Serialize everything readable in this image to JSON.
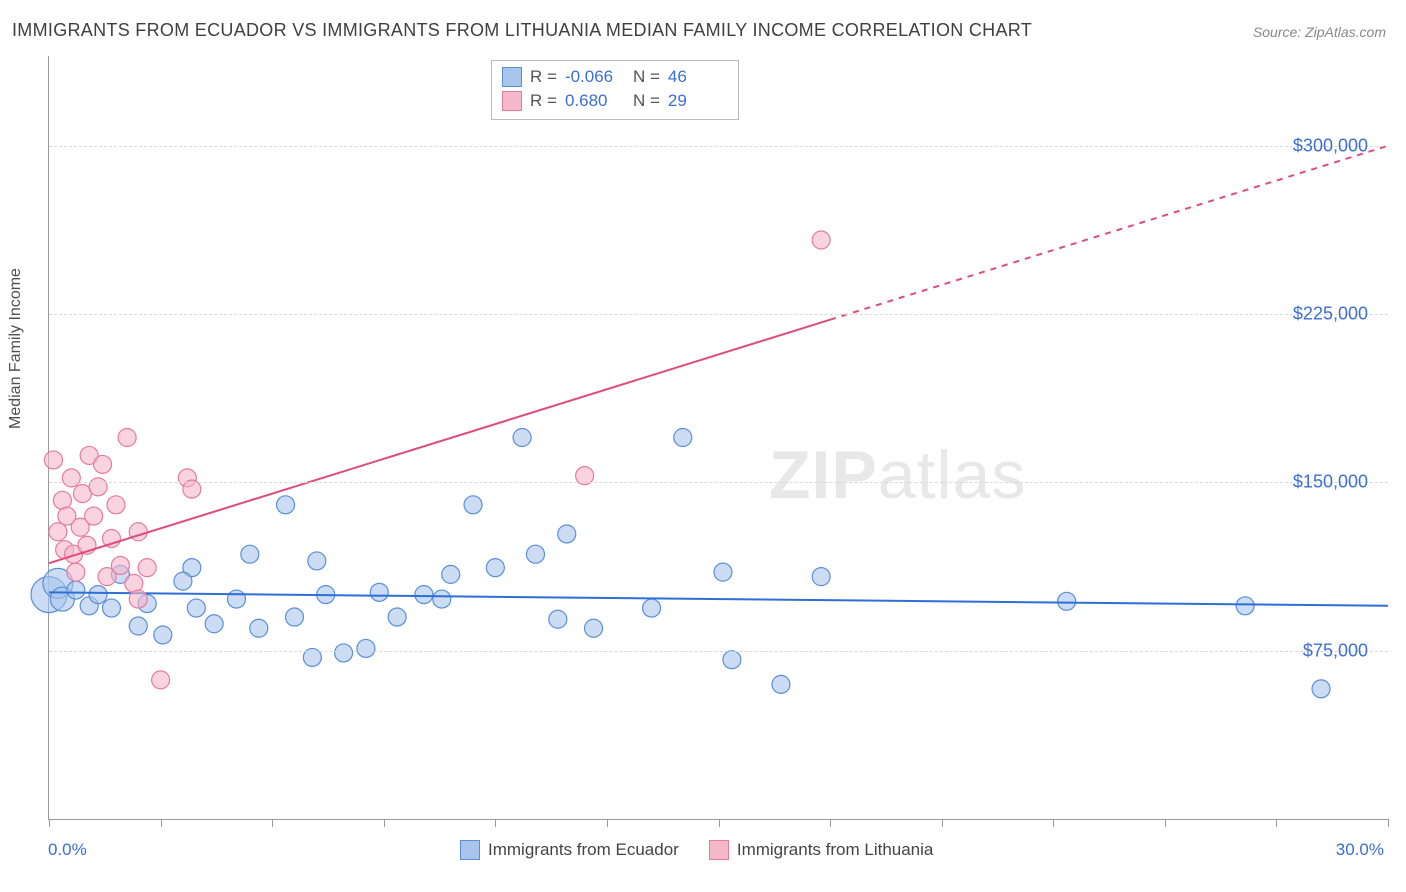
{
  "title": "IMMIGRANTS FROM ECUADOR VS IMMIGRANTS FROM LITHUANIA MEDIAN FAMILY INCOME CORRELATION CHART",
  "source": "Source: ZipAtlas.com",
  "y_axis_label": "Median Family Income",
  "watermark": {
    "bold": "ZIP",
    "light": "atlas"
  },
  "chart": {
    "type": "scatter",
    "xlim": [
      0.0,
      30.0
    ],
    "ylim": [
      0,
      340000
    ],
    "x_left_label": "0.0%",
    "x_right_label": "30.0%",
    "x_tick_step": 2.5,
    "y_ticks": [
      75000,
      150000,
      225000,
      300000
    ],
    "y_tick_labels": [
      "$75,000",
      "$150,000",
      "$225,000",
      "$300,000"
    ],
    "grid_color": "#d8d8d8",
    "background_color": "#ffffff",
    "axis_color": "#999999",
    "tick_label_color": "#3b6fd6",
    "series": [
      {
        "name": "Immigrants from Ecuador",
        "color_fill": "#a8c5ec",
        "color_stroke": "#5a8fd8",
        "fill_opacity": 0.6,
        "marker_radius": 9,
        "r_value": "-0.066",
        "n_value": "46",
        "trend": {
          "x1": 0.0,
          "y1": 101000,
          "x2": 30.0,
          "y2": 95000,
          "solid_to_x": 30.0,
          "color": "#2e6fd6",
          "width": 2
        },
        "points": [
          {
            "x": 0.0,
            "y": 100000,
            "r": 18
          },
          {
            "x": 0.2,
            "y": 105000,
            "r": 15
          },
          {
            "x": 0.3,
            "y": 98000,
            "r": 12
          },
          {
            "x": 0.6,
            "y": 102000
          },
          {
            "x": 0.9,
            "y": 95000
          },
          {
            "x": 1.1,
            "y": 100000
          },
          {
            "x": 1.4,
            "y": 94000
          },
          {
            "x": 1.6,
            "y": 109000
          },
          {
            "x": 2.0,
            "y": 86000
          },
          {
            "x": 2.2,
            "y": 96000
          },
          {
            "x": 2.55,
            "y": 82000
          },
          {
            "x": 3.2,
            "y": 112000
          },
          {
            "x": 3.3,
            "y": 94000
          },
          {
            "x": 3.7,
            "y": 87000
          },
          {
            "x": 4.2,
            "y": 98000
          },
          {
            "x": 4.7,
            "y": 85000
          },
          {
            "x": 5.3,
            "y": 140000
          },
          {
            "x": 5.5,
            "y": 90000
          },
          {
            "x": 5.9,
            "y": 72000
          },
          {
            "x": 6.2,
            "y": 100000
          },
          {
            "x": 6.6,
            "y": 74000
          },
          {
            "x": 7.1,
            "y": 76000
          },
          {
            "x": 7.4,
            "y": 101000
          },
          {
            "x": 7.8,
            "y": 90000
          },
          {
            "x": 8.4,
            "y": 100000
          },
          {
            "x": 9.0,
            "y": 109000
          },
          {
            "x": 9.5,
            "y": 140000
          },
          {
            "x": 10.0,
            "y": 112000
          },
          {
            "x": 10.6,
            "y": 170000
          },
          {
            "x": 10.9,
            "y": 118000
          },
          {
            "x": 11.4,
            "y": 89000
          },
          {
            "x": 12.2,
            "y": 85000
          },
          {
            "x": 13.5,
            "y": 94000
          },
          {
            "x": 14.2,
            "y": 170000
          },
          {
            "x": 15.3,
            "y": 71000
          },
          {
            "x": 15.1,
            "y": 110000
          },
          {
            "x": 16.4,
            "y": 60000
          },
          {
            "x": 17.3,
            "y": 108000
          },
          {
            "x": 22.8,
            "y": 97000
          },
          {
            "x": 26.8,
            "y": 95000
          },
          {
            "x": 28.5,
            "y": 58000
          },
          {
            "x": 3.0,
            "y": 106000
          },
          {
            "x": 4.5,
            "y": 118000
          },
          {
            "x": 6.0,
            "y": 115000
          },
          {
            "x": 8.8,
            "y": 98000
          },
          {
            "x": 11.6,
            "y": 127000
          }
        ]
      },
      {
        "name": "Immigrants from Lithuania",
        "color_fill": "#f5b8cb",
        "color_stroke": "#e77aa0",
        "fill_opacity": 0.6,
        "marker_radius": 9,
        "r_value": "0.680",
        "n_value": "29",
        "trend": {
          "x1": 0.0,
          "y1": 114000,
          "x2": 30.0,
          "y2": 300000,
          "solid_to_x": 17.5,
          "color": "#e14b7c",
          "width": 2
        },
        "points": [
          {
            "x": 0.1,
            "y": 160000
          },
          {
            "x": 0.2,
            "y": 128000
          },
          {
            "x": 0.3,
            "y": 142000
          },
          {
            "x": 0.35,
            "y": 120000
          },
          {
            "x": 0.4,
            "y": 135000
          },
          {
            "x": 0.5,
            "y": 152000
          },
          {
            "x": 0.55,
            "y": 118000
          },
          {
            "x": 0.6,
            "y": 110000
          },
          {
            "x": 0.7,
            "y": 130000
          },
          {
            "x": 0.75,
            "y": 145000
          },
          {
            "x": 0.85,
            "y": 122000
          },
          {
            "x": 0.9,
            "y": 162000
          },
          {
            "x": 1.0,
            "y": 135000
          },
          {
            "x": 1.1,
            "y": 148000
          },
          {
            "x": 1.2,
            "y": 158000
          },
          {
            "x": 1.3,
            "y": 108000
          },
          {
            "x": 1.4,
            "y": 125000
          },
          {
            "x": 1.5,
            "y": 140000
          },
          {
            "x": 1.6,
            "y": 113000
          },
          {
            "x": 1.75,
            "y": 170000
          },
          {
            "x": 1.9,
            "y": 105000
          },
          {
            "x": 2.0,
            "y": 98000
          },
          {
            "x": 2.2,
            "y": 112000
          },
          {
            "x": 2.5,
            "y": 62000
          },
          {
            "x": 3.1,
            "y": 152000
          },
          {
            "x": 3.2,
            "y": 147000
          },
          {
            "x": 2.0,
            "y": 128000
          },
          {
            "x": 12.0,
            "y": 153000
          },
          {
            "x": 17.3,
            "y": 258000
          }
        ]
      }
    ]
  },
  "stats_legend": {
    "rows": [
      {
        "swatch_fill": "#a8c5ec",
        "swatch_stroke": "#5a8fd8",
        "r_label": "R =",
        "r_val": "-0.066",
        "n_label": "N =",
        "n_val": "46"
      },
      {
        "swatch_fill": "#f5b8cb",
        "swatch_stroke": "#e77aa0",
        "r_label": "R =",
        "r_val": " 0.680",
        "n_label": "N =",
        "n_val": "29"
      }
    ]
  },
  "bottom_legend": [
    {
      "swatch_fill": "#a8c5ec",
      "swatch_stroke": "#5a8fd8",
      "label": "Immigrants from Ecuador"
    },
    {
      "swatch_fill": "#f5b8cb",
      "swatch_stroke": "#e77aa0",
      "label": "Immigrants from Lithuania"
    }
  ]
}
